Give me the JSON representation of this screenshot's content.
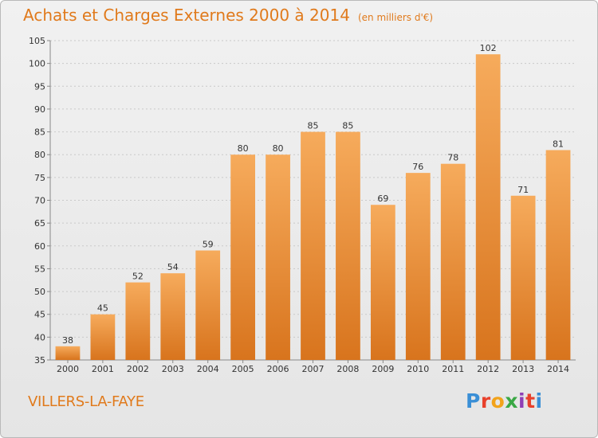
{
  "header": {
    "title": "Achats et Charges Externes 2000 à 2014",
    "unit": "(en milliers d'€)"
  },
  "footer": {
    "commune": "VILLERS-LA-FAYE",
    "logo_text": "Proxiti"
  },
  "colors": {
    "accent": "#e07a1c",
    "bar_light": "#f5a95a",
    "bar_dark": "#d9761f",
    "grid": "#c8c8c8"
  },
  "chart_data": {
    "type": "bar",
    "title": "Achats et Charges Externes 2000 à 2014",
    "subtitle": "(en milliers d'€)",
    "xlabel": "",
    "ylabel": "",
    "categories": [
      "2000",
      "2001",
      "2002",
      "2003",
      "2004",
      "2005",
      "2006",
      "2007",
      "2008",
      "2009",
      "2010",
      "2011",
      "2012",
      "2013",
      "2014"
    ],
    "values": [
      38,
      45,
      52,
      54,
      59,
      80,
      80,
      85,
      85,
      69,
      76,
      78,
      102,
      71,
      81
    ],
    "ylim": [
      35,
      105
    ],
    "yticks": [
      35,
      40,
      45,
      50,
      55,
      60,
      65,
      70,
      75,
      80,
      85,
      90,
      95,
      100,
      105
    ],
    "grid": true,
    "legend": "none"
  }
}
